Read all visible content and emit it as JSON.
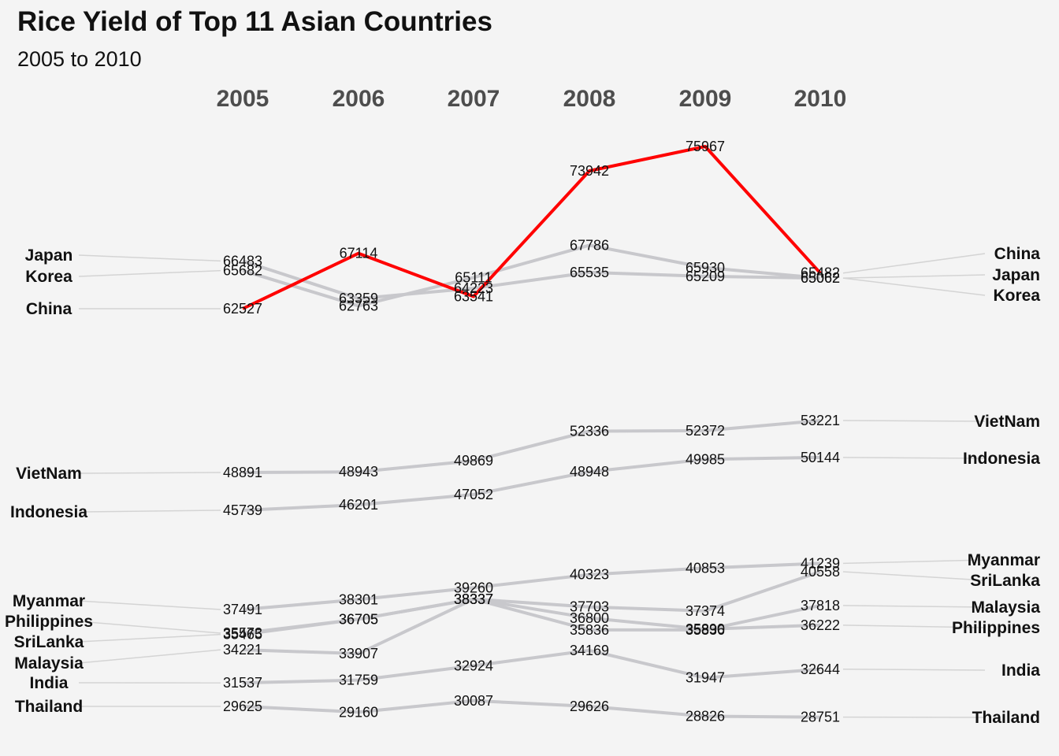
{
  "title": "Rice Yield of Top 11 Asian Countries",
  "subtitle": "2005 to 2010",
  "chart_data": {
    "type": "line",
    "chart_style": "slope chart",
    "highlight_color": "#ff0000",
    "line_color": "#c8c8cc",
    "connector_color": "#d4d4d4",
    "highlight_series": "China",
    "x": [
      "2005",
      "2006",
      "2007",
      "2008",
      "2009",
      "2010"
    ],
    "series": [
      {
        "name": "Japan",
        "values": [
          66483,
          63359,
          64223,
          65535,
          65209,
          65062
        ]
      },
      {
        "name": "Korea",
        "values": [
          65682,
          62763,
          65111,
          67786,
          65930,
          65062
        ]
      },
      {
        "name": "China",
        "values": [
          62527,
          67114,
          63541,
          73942,
          75967,
          65482
        ]
      },
      {
        "name": "VietNam",
        "values": [
          48891,
          48943,
          49869,
          52336,
          52372,
          53221
        ]
      },
      {
        "name": "Indonesia",
        "values": [
          45739,
          46201,
          47052,
          48948,
          49985,
          50144
        ]
      },
      {
        "name": "Myanmar",
        "values": [
          37491,
          38301,
          39260,
          40323,
          40853,
          41239
        ]
      },
      {
        "name": "Philippines",
        "values": [
          35573,
          36705,
          38337,
          36800,
          35890,
          36222
        ]
      },
      {
        "name": "SriLanka",
        "values": [
          35465,
          36705,
          38337,
          37703,
          37374,
          40558
        ]
      },
      {
        "name": "Malaysia",
        "values": [
          34221,
          33907,
          38337,
          35836,
          35836,
          37818
        ]
      },
      {
        "name": "India",
        "values": [
          31537,
          31759,
          32924,
          34169,
          31947,
          32644
        ]
      },
      {
        "name": "Thailand",
        "values": [
          29625,
          29160,
          30087,
          29626,
          28826,
          28751
        ]
      }
    ],
    "left_labels": [
      "Japan",
      "Korea",
      "China",
      "VietNam",
      "Indonesia",
      "Myanmar",
      "Philippines",
      "SriLanka",
      "Malaysia",
      "India",
      "Thailand"
    ],
    "right_labels": [
      "China",
      "Japan",
      "Korea",
      "VietNam",
      "Indonesia",
      "Myanmar",
      "SriLanka",
      "Malaysia",
      "Philippines",
      "India",
      "Thailand"
    ]
  }
}
